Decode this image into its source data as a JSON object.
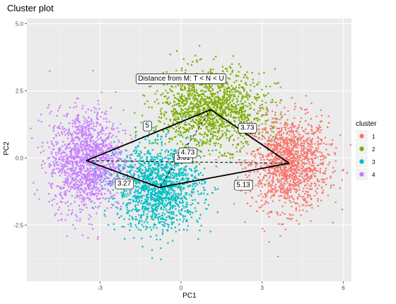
{
  "chart_data": {
    "type": "scatter",
    "title": "Cluster plot",
    "xlabel": "PC1",
    "ylabel": "PC2",
    "xlim": [
      -5.7,
      6.3
    ],
    "ylim": [
      -4.6,
      5.2
    ],
    "x_ticks": [
      -3,
      0,
      3,
      6
    ],
    "y_ticks": [
      -2.5,
      0.0,
      2.5,
      5.0
    ],
    "x_tick_labels": [
      "-3",
      "0",
      "3",
      "6"
    ],
    "y_tick_labels": [
      "-2.5",
      "0.0",
      "2.5",
      "5.0"
    ],
    "grid": true,
    "legend": {
      "title": "cluster",
      "position": "right",
      "entries": [
        {
          "label": "1",
          "color": "#F8766D"
        },
        {
          "label": "2",
          "color": "#7CAE00"
        },
        {
          "label": "3",
          "color": "#00BFC4"
        },
        {
          "label": "4",
          "color": "#C77CFF"
        }
      ]
    },
    "clusters": [
      {
        "name": "1",
        "color": "#F8766D",
        "center": [
          4.0,
          -0.2
        ],
        "spread": [
          1.0,
          1.2
        ],
        "points": 1400
      },
      {
        "name": "2",
        "color": "#7CAE00",
        "center": [
          1.1,
          1.8
        ],
        "spread": [
          1.4,
          1.0
        ],
        "points": 1400
      },
      {
        "name": "3",
        "color": "#00BFC4",
        "center": [
          -0.8,
          -1.1
        ],
        "spread": [
          1.1,
          1.1
        ],
        "points": 1400
      },
      {
        "name": "4",
        "color": "#C77CFF",
        "center": [
          -3.5,
          -0.1
        ],
        "spread": [
          0.95,
          1.3
        ],
        "points": 1400
      }
    ],
    "solid_segments": [
      {
        "from": "4",
        "to": "2"
      },
      {
        "from": "2",
        "to": "1"
      },
      {
        "from": "1",
        "to": "3"
      },
      {
        "from": "3",
        "to": "4"
      }
    ],
    "dashed_segments": [
      {
        "from": "4",
        "to": "1"
      },
      {
        "from": "2",
        "to": "3"
      },
      {
        "from": "4",
        "to": "2"
      },
      {
        "from": "4",
        "to": "3"
      },
      {
        "from": "3",
        "to": "1"
      }
    ],
    "annotation": {
      "text": "Distance from M: T < N < U",
      "x": 0.0,
      "y": 2.98
    },
    "distance_labels": [
      {
        "text": "5",
        "x": -1.25,
        "y": 1.22
      },
      {
        "text": "3.73",
        "x": 2.45,
        "y": 1.14
      },
      {
        "text": "3.61",
        "x": 0.08,
        "y": 0.03
      },
      {
        "text": "3.27",
        "x": -2.1,
        "y": -0.94
      },
      {
        "text": "5.13",
        "x": 2.3,
        "y": -0.99
      },
      {
        "text": "4.73",
        "x": 0.25,
        "y": 0.22
      }
    ]
  }
}
